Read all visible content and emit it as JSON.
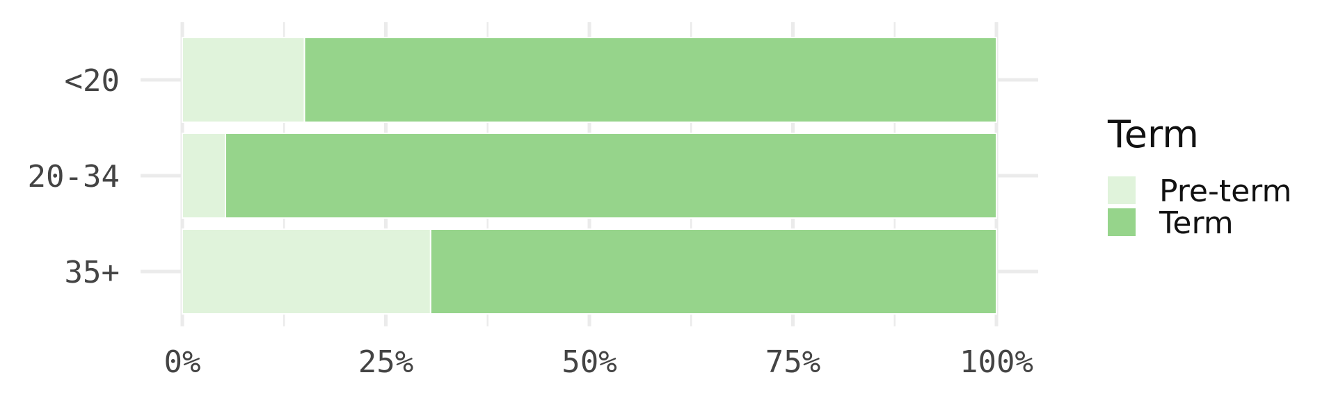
{
  "chart_data": {
    "type": "bar",
    "orientation": "horizontal",
    "stacked": "percent",
    "categories": [
      "<20",
      "20-34",
      "35+"
    ],
    "series": [
      {
        "name": "Pre-term",
        "values": [
          0.15,
          0.053,
          0.305
        ],
        "color": "#e0f3db"
      },
      {
        "name": "Term",
        "values": [
          0.85,
          0.947,
          0.695
        ],
        "color": "#96d48b"
      }
    ],
    "xlim": [
      0,
      1
    ],
    "x_ticks": [
      0,
      0.25,
      0.5,
      0.75,
      1
    ],
    "x_tick_labels": [
      "0%",
      "25%",
      "50%",
      "75%",
      "100%"
    ],
    "legend": {
      "title": "Term",
      "position": "right"
    },
    "grid": true,
    "gridline_color": "#ebebeb",
    "text_color": "#444444"
  }
}
